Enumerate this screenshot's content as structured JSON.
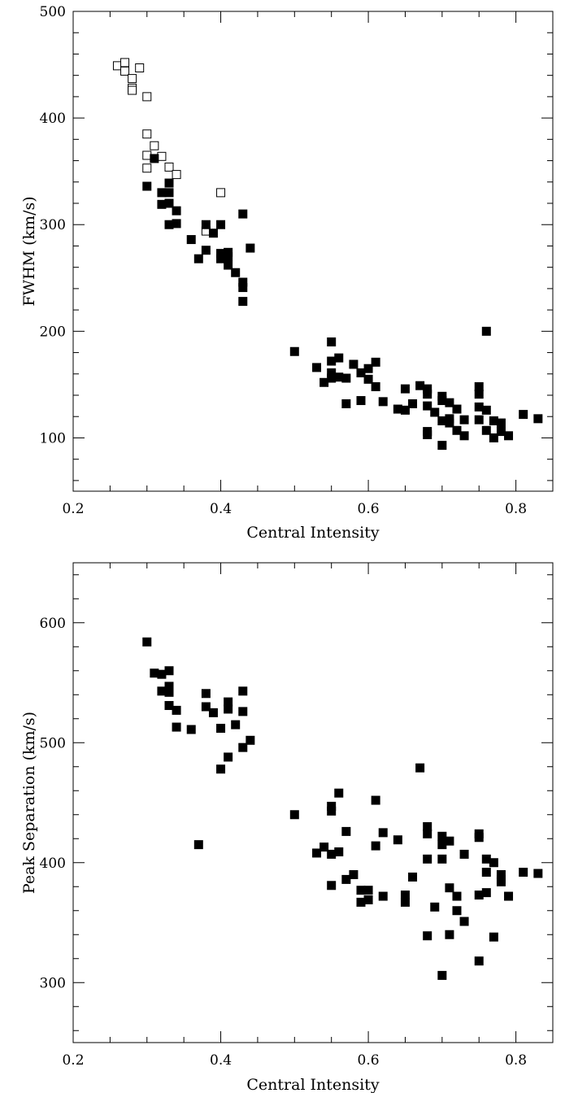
{
  "chart_data": [
    {
      "type": "scatter",
      "title": "",
      "xlabel": "Central Intensity",
      "ylabel": "FWHM (km/s)",
      "xlim": [
        0.2,
        0.85
      ],
      "ylim": [
        50,
        500
      ],
      "xticks": [
        "0.2",
        "0.4",
        "0.6",
        "0.8"
      ],
      "yticks": [
        "100",
        "200",
        "300",
        "400",
        "500"
      ],
      "series": [
        {
          "marker": "open-square",
          "color": "#000000",
          "points": [
            [
              0.26,
              449
            ],
            [
              0.27,
              452
            ],
            [
              0.27,
              444
            ],
            [
              0.28,
              437
            ],
            [
              0.28,
              428
            ],
            [
              0.28,
              426
            ],
            [
              0.29,
              447
            ],
            [
              0.3,
              420
            ],
            [
              0.3,
              385
            ],
            [
              0.31,
              374
            ],
            [
              0.3,
              365
            ],
            [
              0.32,
              364
            ],
            [
              0.3,
              353
            ],
            [
              0.33,
              354
            ],
            [
              0.34,
              347
            ],
            [
              0.4,
              330
            ],
            [
              0.38,
              294
            ]
          ]
        },
        {
          "marker": "filled-square",
          "color": "#000000",
          "points": [
            [
              0.3,
              336
            ],
            [
              0.31,
              362
            ],
            [
              0.32,
              330
            ],
            [
              0.33,
              330
            ],
            [
              0.33,
              339
            ],
            [
              0.32,
              319
            ],
            [
              0.33,
              320
            ],
            [
              0.34,
              313
            ],
            [
              0.33,
              300
            ],
            [
              0.34,
              301
            ],
            [
              0.36,
              286
            ],
            [
              0.38,
              300
            ],
            [
              0.4,
              300
            ],
            [
              0.39,
              292
            ],
            [
              0.38,
              276
            ],
            [
              0.37,
              268
            ],
            [
              0.4,
              273
            ],
            [
              0.4,
              268
            ],
            [
              0.41,
              274
            ],
            [
              0.41,
              270
            ],
            [
              0.41,
              262
            ],
            [
              0.42,
              255
            ],
            [
              0.43,
              310
            ],
            [
              0.44,
              278
            ],
            [
              0.43,
              246
            ],
            [
              0.43,
              241
            ],
            [
              0.43,
              228
            ],
            [
              0.5,
              181
            ],
            [
              0.53,
              166
            ],
            [
              0.54,
              152
            ],
            [
              0.55,
              190
            ],
            [
              0.55,
              172
            ],
            [
              0.55,
              161
            ],
            [
              0.55,
              156
            ],
            [
              0.56,
              175
            ],
            [
              0.56,
              157
            ],
            [
              0.57,
              156
            ],
            [
              0.57,
              132
            ],
            [
              0.58,
              169
            ],
            [
              0.59,
              161
            ],
            [
              0.59,
              135
            ],
            [
              0.6,
              165
            ],
            [
              0.6,
              155
            ],
            [
              0.61,
              171
            ],
            [
              0.61,
              148
            ],
            [
              0.62,
              134
            ],
            [
              0.64,
              127
            ],
            [
              0.65,
              146
            ],
            [
              0.65,
              126
            ],
            [
              0.66,
              132
            ],
            [
              0.67,
              149
            ],
            [
              0.68,
              146
            ],
            [
              0.68,
              141
            ],
            [
              0.68,
              130
            ],
            [
              0.68,
              106
            ],
            [
              0.68,
              103
            ],
            [
              0.69,
              124
            ],
            [
              0.7,
              139
            ],
            [
              0.7,
              135
            ],
            [
              0.7,
              116
            ],
            [
              0.7,
              93
            ],
            [
              0.71,
              133
            ],
            [
              0.71,
              118
            ],
            [
              0.71,
              114
            ],
            [
              0.72,
              127
            ],
            [
              0.72,
              107
            ],
            [
              0.73,
              117
            ],
            [
              0.73,
              102
            ],
            [
              0.75,
              148
            ],
            [
              0.75,
              141
            ],
            [
              0.75,
              129
            ],
            [
              0.75,
              117
            ],
            [
              0.76,
              200
            ],
            [
              0.76,
              126
            ],
            [
              0.76,
              107
            ],
            [
              0.77,
              116
            ],
            [
              0.77,
              100
            ],
            [
              0.78,
              114
            ],
            [
              0.78,
              106
            ],
            [
              0.79,
              102
            ],
            [
              0.81,
              122
            ],
            [
              0.83,
              118
            ]
          ]
        }
      ]
    },
    {
      "type": "scatter",
      "title": "",
      "xlabel": "Central Intensity",
      "ylabel": "Peak Separation (km/s)",
      "xlim": [
        0.2,
        0.85
      ],
      "ylim": [
        250,
        650
      ],
      "xticks": [
        "0.2",
        "0.4",
        "0.6",
        "0.8"
      ],
      "yticks": [
        "300",
        "400",
        "500",
        "600"
      ],
      "series": [
        {
          "marker": "filled-square",
          "color": "#000000",
          "points": [
            [
              0.3,
              584
            ],
            [
              0.31,
              558
            ],
            [
              0.32,
              557
            ],
            [
              0.32,
              543
            ],
            [
              0.33,
              560
            ],
            [
              0.33,
              547
            ],
            [
              0.33,
              542
            ],
            [
              0.33,
              531
            ],
            [
              0.34,
              527
            ],
            [
              0.34,
              513
            ],
            [
              0.36,
              511
            ],
            [
              0.38,
              541
            ],
            [
              0.38,
              530
            ],
            [
              0.39,
              525
            ],
            [
              0.4,
              512
            ],
            [
              0.41,
              534
            ],
            [
              0.41,
              528
            ],
            [
              0.42,
              515
            ],
            [
              0.43,
              543
            ],
            [
              0.43,
              526
            ],
            [
              0.43,
              496
            ],
            [
              0.44,
              502
            ],
            [
              0.41,
              488
            ],
            [
              0.4,
              478
            ],
            [
              0.37,
              415
            ],
            [
              0.5,
              440
            ],
            [
              0.53,
              408
            ],
            [
              0.54,
              413
            ],
            [
              0.55,
              447
            ],
            [
              0.55,
              443
            ],
            [
              0.55,
              407
            ],
            [
              0.55,
              381
            ],
            [
              0.56,
              458
            ],
            [
              0.56,
              409
            ],
            [
              0.57,
              426
            ],
            [
              0.57,
              386
            ],
            [
              0.58,
              390
            ],
            [
              0.59,
              377
            ],
            [
              0.59,
              367
            ],
            [
              0.6,
              377
            ],
            [
              0.6,
              369
            ],
            [
              0.61,
              452
            ],
            [
              0.61,
              414
            ],
            [
              0.62,
              425
            ],
            [
              0.62,
              372
            ],
            [
              0.64,
              419
            ],
            [
              0.65,
              373
            ],
            [
              0.65,
              367
            ],
            [
              0.66,
              388
            ],
            [
              0.67,
              479
            ],
            [
              0.68,
              430
            ],
            [
              0.68,
              424
            ],
            [
              0.68,
              403
            ],
            [
              0.68,
              339
            ],
            [
              0.69,
              363
            ],
            [
              0.7,
              422
            ],
            [
              0.7,
              415
            ],
            [
              0.7,
              403
            ],
            [
              0.7,
              306
            ],
            [
              0.71,
              418
            ],
            [
              0.71,
              379
            ],
            [
              0.71,
              340
            ],
            [
              0.72,
              372
            ],
            [
              0.72,
              360
            ],
            [
              0.73,
              407
            ],
            [
              0.73,
              351
            ],
            [
              0.75,
              424
            ],
            [
              0.75,
              421
            ],
            [
              0.75,
              373
            ],
            [
              0.75,
              318
            ],
            [
              0.76,
              403
            ],
            [
              0.76,
              392
            ],
            [
              0.76,
              375
            ],
            [
              0.77,
              400
            ],
            [
              0.77,
              338
            ],
            [
              0.78,
              390
            ],
            [
              0.78,
              386
            ],
            [
              0.78,
              384
            ],
            [
              0.79,
              372
            ],
            [
              0.81,
              392
            ],
            [
              0.83,
              391
            ]
          ]
        }
      ]
    }
  ]
}
